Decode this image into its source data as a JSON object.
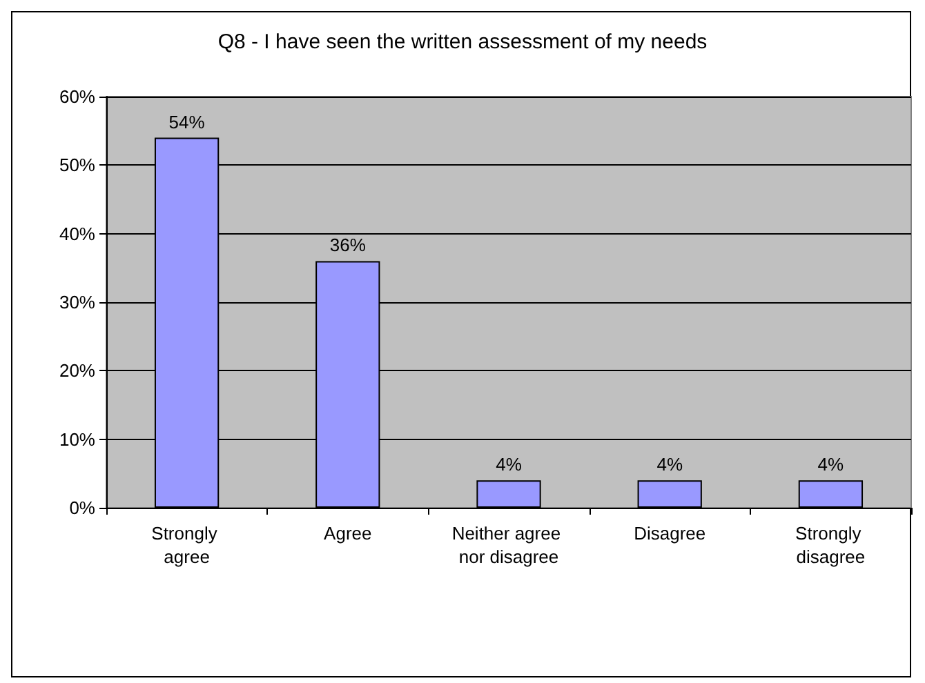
{
  "chart_data": {
    "type": "bar",
    "title": "Q8 - I have seen the written assessment of my needs",
    "categories": [
      "Strongly agree",
      "Agree",
      "Neither agree nor disagree",
      "Disagree",
      "Strongly disagree"
    ],
    "values": [
      54,
      36,
      4,
      4,
      4
    ],
    "value_labels": [
      "54%",
      "36%",
      "4%",
      "4%",
      "4%"
    ],
    "color": "#9999ff",
    "ylim": [
      0,
      60
    ],
    "yticks": [
      {
        "value": 0,
        "label": "0%"
      },
      {
        "value": 10,
        "label": "10%"
      },
      {
        "value": 20,
        "label": "20%"
      },
      {
        "value": 30,
        "label": "30%"
      },
      {
        "value": 40,
        "label": "40%"
      },
      {
        "value": 50,
        "label": "50%"
      },
      {
        "value": 60,
        "label": "60%"
      }
    ],
    "grid": "y"
  }
}
